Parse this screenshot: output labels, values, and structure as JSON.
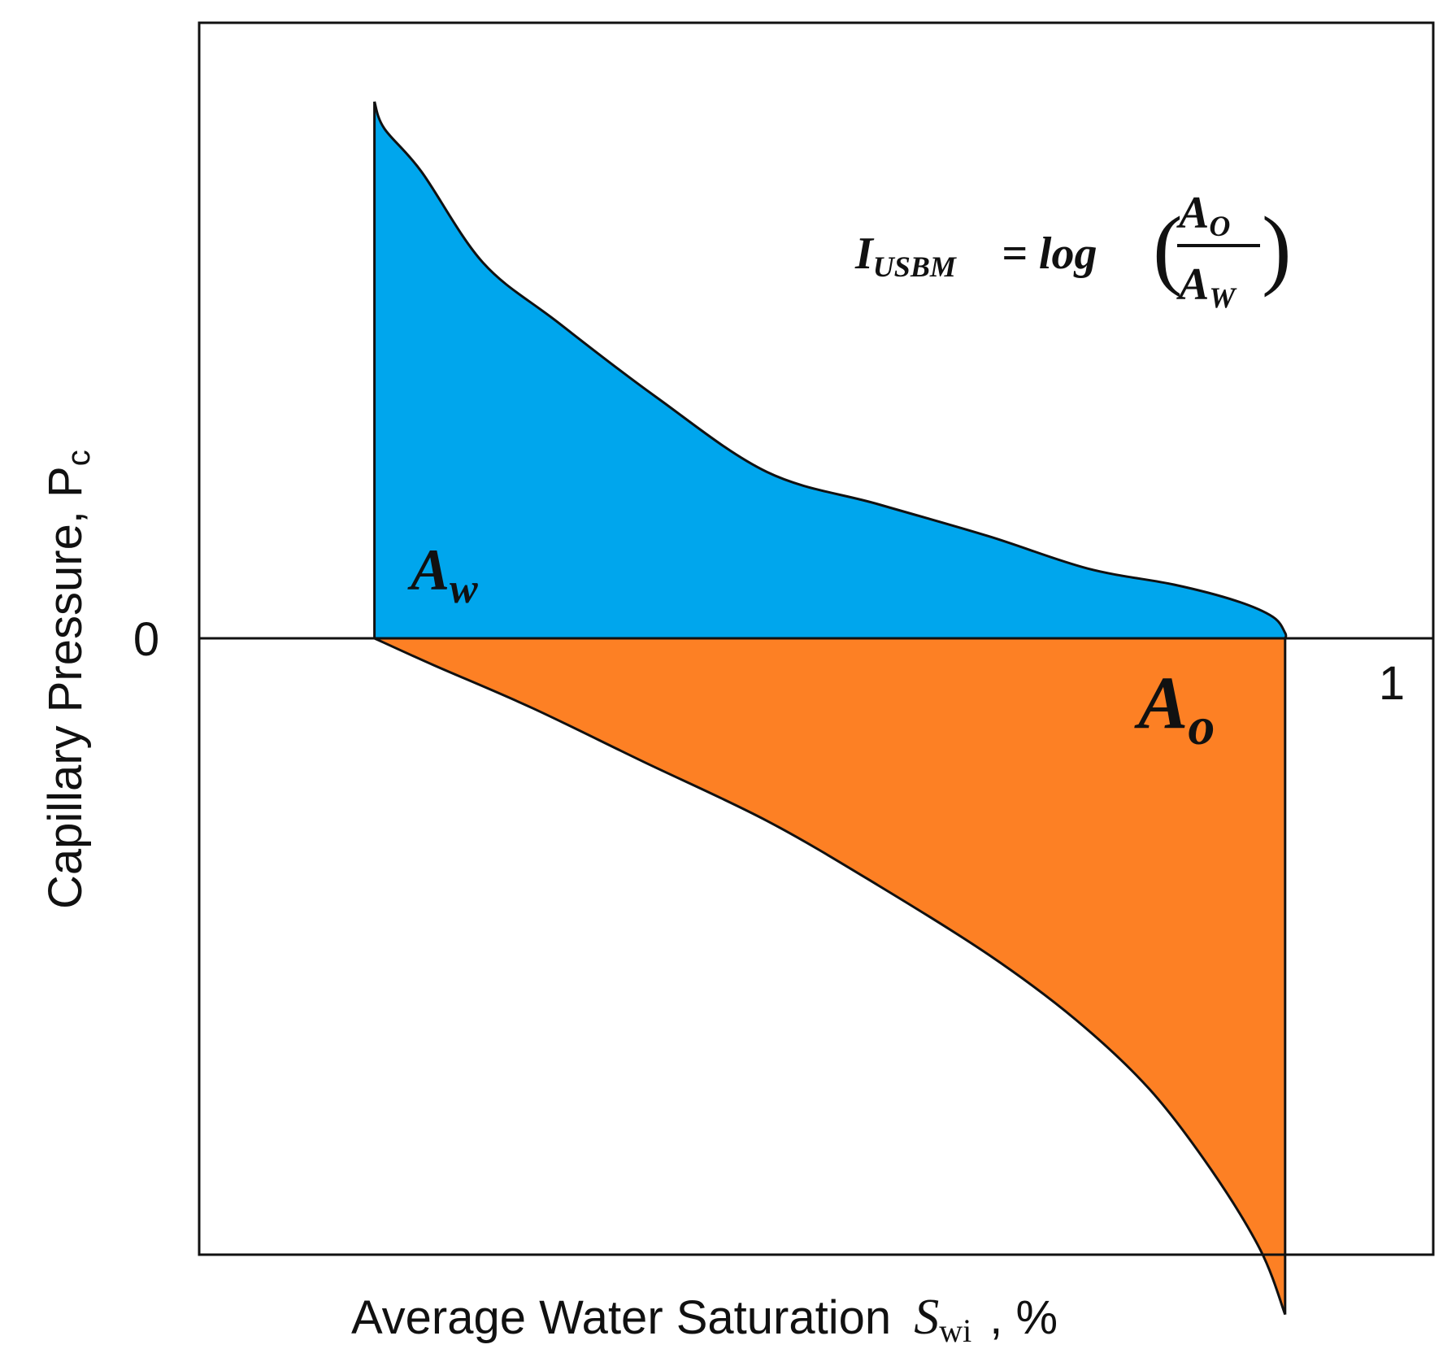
{
  "chart_data": {
    "type": "area",
    "title": "",
    "xlabel": "Average Water Saturation",
    "xlabel_symbol": "S",
    "xlabel_subscript": "wi",
    "xlabel_unit": ", %",
    "ylabel": "Capillary Pressure, P",
    "ylabel_subscript": "c",
    "xlim": [
      0,
      1
    ],
    "ylim": [
      -1.15,
      1.15
    ],
    "grid": false,
    "legend": "none",
    "ticks": {
      "y_zero": "0",
      "x_one": "1"
    },
    "series": [
      {
        "name": "A_w",
        "label_main": "A",
        "label_sub": "w",
        "color": "#00a6ed",
        "x": [
          0.142,
          0.15,
          0.18,
          0.23,
          0.29,
          0.37,
          0.46,
          0.55,
          0.64,
          0.72,
          0.79,
          0.84,
          0.87,
          0.88,
          0.88
        ],
        "y": [
          1.0,
          0.95,
          0.87,
          0.7,
          0.59,
          0.45,
          0.31,
          0.25,
          0.19,
          0.13,
          0.1,
          0.07,
          0.04,
          0.01,
          0.0
        ]
      },
      {
        "name": "A_o",
        "label_main": "A",
        "label_sub": "o",
        "color": "#fd8024",
        "x": [
          0.142,
          0.19,
          0.27,
          0.36,
          0.46,
          0.55,
          0.64,
          0.71,
          0.77,
          0.82,
          0.86,
          0.88,
          0.88
        ],
        "y": [
          0.0,
          -0.05,
          -0.13,
          -0.23,
          -0.34,
          -0.46,
          -0.59,
          -0.71,
          -0.84,
          -0.99,
          -1.14,
          -1.26,
          0.0
        ]
      }
    ],
    "annotations": {
      "equation_lhs": "I",
      "equation_lhs_sub": "USBM",
      "equation_eq": "= log",
      "equation_num": "A",
      "equation_num_sub": "O",
      "equation_den": "A",
      "equation_den_sub": "W"
    }
  },
  "colors": {
    "water": "#00a6ed",
    "oil": "#fd8024",
    "axis": "#111111"
  }
}
